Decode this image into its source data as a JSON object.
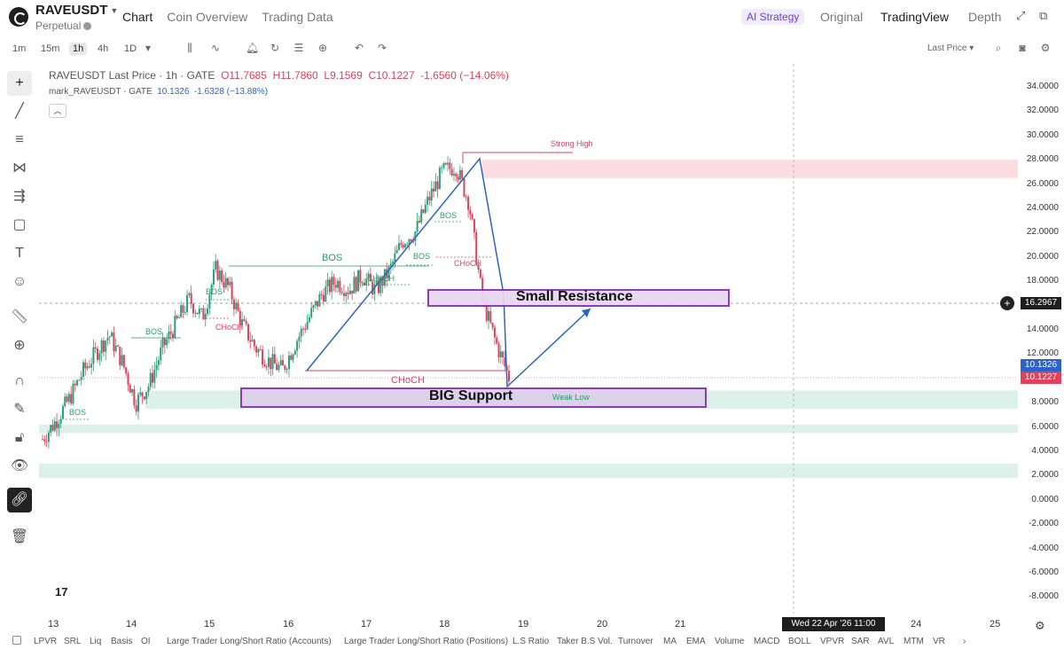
{
  "header": {
    "symbol": "RAVEUSDT",
    "subtitle": "Perpetual",
    "tabs": [
      "Chart",
      "Coin Overview",
      "Trading Data"
    ],
    "strategy": "AI Strategy",
    "views": [
      "Original",
      "TradingView",
      "Depth"
    ]
  },
  "toolbar": {
    "timeframes": [
      "1m",
      "15m",
      "1h",
      "4h",
      "1D"
    ],
    "active_timeframe": "1h",
    "price_type": "Last Price"
  },
  "legend": {
    "title": "RAVEUSDT Last Price · 1h · GATE",
    "open": "O11.7685",
    "high": "H11.7860",
    "low": "L9.1569",
    "close": "C10.1227",
    "change": "-1.6560 (−14.06%)",
    "mark_title": "mark_RAVEUSDT · GATE",
    "mark_value": "10.1326",
    "mark_change": "-1.6328 (−13.88%)"
  },
  "price_axis": {
    "ticks": [
      "34.0000",
      "32.0000",
      "30.0000",
      "28.0000",
      "26.0000",
      "24.0000",
      "22.0000",
      "20.0000",
      "18.0000",
      "16.0000",
      "14.0000",
      "12.0000",
      "10.0000",
      "8.0000",
      "6.0000",
      "4.0000",
      "2.0000",
      "0.0000",
      "-2.0000",
      "-4.0000",
      "-6.0000",
      "-8.0000"
    ],
    "crosshair_price": "16.2967",
    "mark_price": "10.1326",
    "last_price": "10.1227",
    "colors": {
      "mark": "#2b63c8",
      "last": "#e0405a",
      "crosshair": "#1e1e1e"
    }
  },
  "time_axis": {
    "ticks": [
      "13",
      "14",
      "15",
      "16",
      "17",
      "18",
      "19",
      "20",
      "21",
      "",
      "24",
      "25"
    ],
    "crosshair_time": "Wed 22 Apr '26   11:00"
  },
  "annotations": {
    "strong_high": "Strong High",
    "weak_low": "Weak Low",
    "bos": "BOS",
    "choch": "CHoCH",
    "small_resistance": "Small Resistance",
    "big_support": "BIG Support"
  },
  "indicators": [
    "LPVR",
    "SRL",
    "Liq",
    "Basis",
    "OI",
    "Large Trader Long/Short Ratio (Accounts)",
    "Large Trader Long/Short Ratio (Positions)",
    "L.S Ratio",
    "Taker B.S Vol.",
    "Turnover",
    "MA",
    "EMA",
    "Volume",
    "MACD",
    "BOLL",
    "VPVR",
    "SAR",
    "AVL",
    "MTM",
    "VR"
  ],
  "chart_data": {
    "type": "candlestick",
    "series_close_path": [
      5.0,
      6.5,
      8.3,
      10.5,
      12.1,
      13.6,
      11.3,
      8.0,
      9.5,
      12.5,
      14.5,
      16.5,
      15.0,
      19.0,
      17.4,
      14.4,
      12.5,
      11.4,
      10.7,
      13.0,
      15.0,
      17.0,
      18.0,
      17.3,
      18.5,
      17.2,
      18.8,
      21.3,
      22.1,
      24.8,
      27.0,
      27.5,
      24.5,
      16.5,
      13.0,
      10.1
    ],
    "ylim": [
      -8,
      34
    ],
    "zones": {
      "strong_high_supply": [
        26.5,
        28.0
      ],
      "small_resistance": [
        16.3,
        17.4
      ],
      "big_support": [
        7.5,
        9.0
      ],
      "demand_2": [
        5.5,
        6.2
      ],
      "demand_3": [
        1.8,
        3.0
      ]
    },
    "colors": {
      "up": "#26a17b",
      "down": "#e0405a",
      "pattern": "#2b63c8",
      "box": "#8b2fb8"
    }
  }
}
